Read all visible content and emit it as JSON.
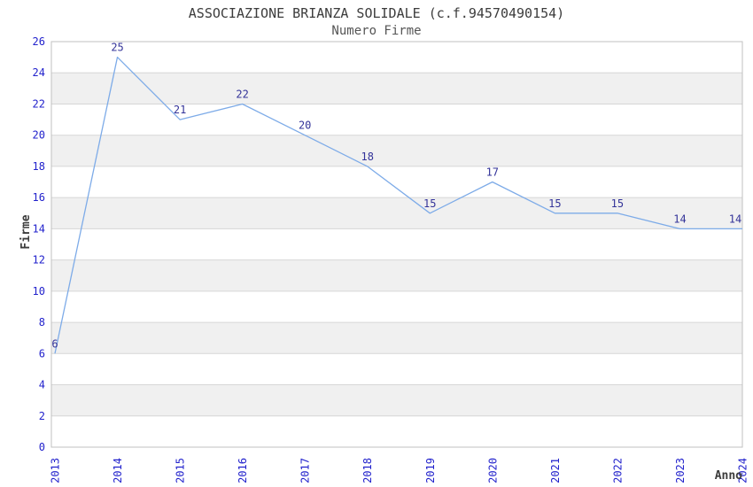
{
  "chart_data": {
    "type": "line",
    "title": "ASSOCIAZIONE BRIANZA SOLIDALE (c.f.94570490154)",
    "subtitle": "Numero Firme",
    "xlabel": "Anno",
    "ylabel": "Firme",
    "x": [
      "2013",
      "2014",
      "2015",
      "2016",
      "2017",
      "2018",
      "2019",
      "2020",
      "2021",
      "2022",
      "2023",
      "2024"
    ],
    "series": [
      {
        "name": "Numero Firme",
        "values": [
          6,
          25,
          21,
          22,
          20,
          18,
          15,
          17,
          15,
          15,
          14,
          14
        ]
      }
    ],
    "ylim": [
      0,
      26
    ],
    "ytick_step": 2,
    "grid": "horizontal bands, alternating gray stripes every 2 units",
    "legend_position": "none",
    "data_labels_shown": true,
    "colors": {
      "line": "#7dabe8",
      "tick_label": "#2222cc",
      "data_label": "#333399",
      "title": "#3c3c3c",
      "subtitle": "#555555",
      "band": "#f0f0f0",
      "gridline": "#d6d6d6",
      "border": "#c0c0c0",
      "background": "#ffffff"
    }
  }
}
